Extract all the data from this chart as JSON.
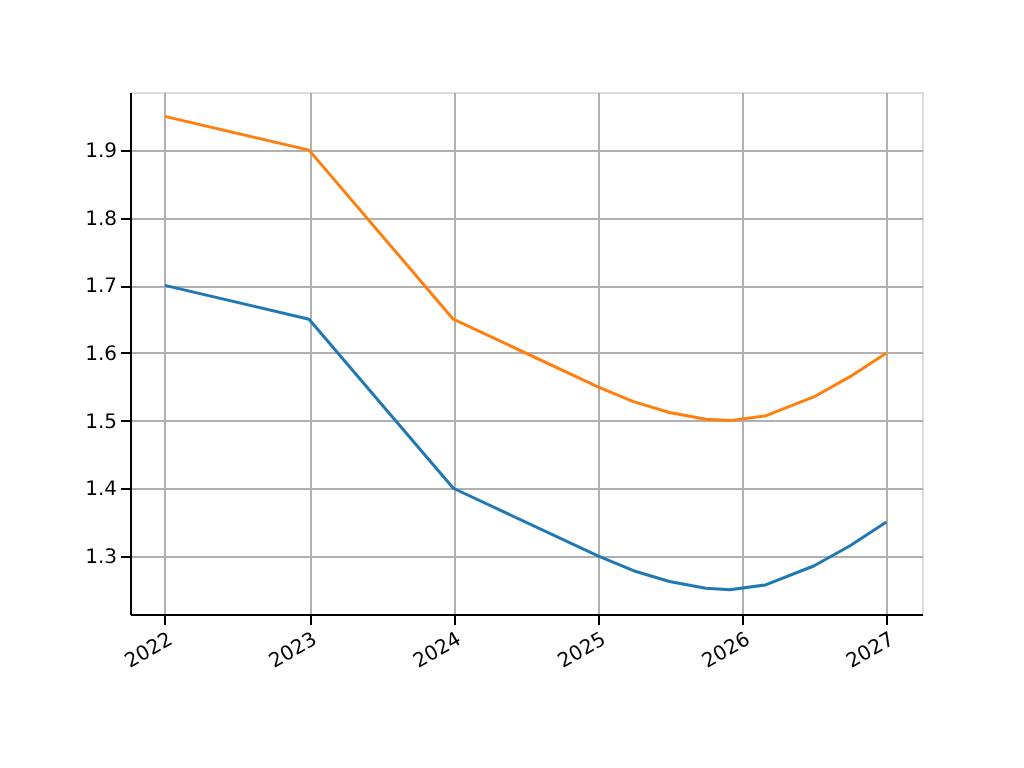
{
  "chart_data": {
    "type": "line",
    "grid": true,
    "line_style": "solid",
    "marker": "none",
    "xlim": [
      "2021-10-05",
      "2027-04-01"
    ],
    "xticks": [
      "2022",
      "2023",
      "2024",
      "2025",
      "2026",
      "2027"
    ],
    "ylim": [
      1.214,
      1.986
    ],
    "yticks": [
      1.3,
      1.4,
      1.5,
      1.6,
      1.7,
      1.8,
      1.9
    ],
    "series": [
      {
        "color": "#1f77b4",
        "x": [
          "2022-01-01",
          "2023-01-01",
          "2024-01-01",
          "2025-01-01",
          "2025-04-01",
          "2025-07-01",
          "2025-10-01",
          "2025-12-01",
          "2026-03-01",
          "2026-07-01",
          "2026-10-01",
          "2027-01-01"
        ],
        "values": [
          1.7,
          1.65,
          1.4,
          1.3,
          1.278,
          1.262,
          1.252,
          1.25,
          1.257,
          1.285,
          1.315,
          1.35
        ]
      },
      {
        "color": "#ff7f0e",
        "x": [
          "2022-01-01",
          "2023-01-01",
          "2024-01-01",
          "2025-01-01",
          "2025-04-01",
          "2025-07-01",
          "2025-10-01",
          "2025-12-01",
          "2026-03-01",
          "2026-07-01",
          "2026-10-01",
          "2027-01-01"
        ],
        "values": [
          1.95,
          1.9,
          1.65,
          1.55,
          1.528,
          1.512,
          1.502,
          1.5,
          1.507,
          1.535,
          1.565,
          1.6
        ]
      }
    ]
  }
}
